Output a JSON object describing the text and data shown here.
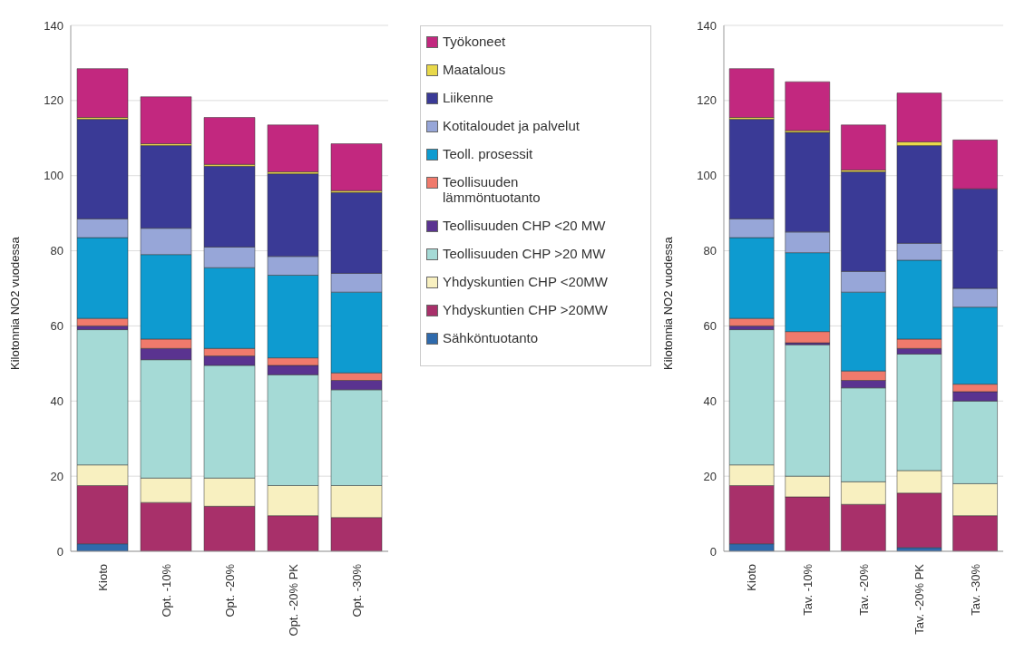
{
  "chart_data": [
    {
      "type": "bar",
      "stacked": true,
      "ylabel": "Kilotonnia NO2 vuodessa",
      "categories": [
        "Kioto",
        "Opt. -10%",
        "Opt. -20%",
        "Opt. -20% PK",
        "Opt. -30%"
      ],
      "ylim": [
        0,
        140
      ],
      "yticks": [
        0,
        20,
        40,
        60,
        80,
        100,
        120,
        140
      ],
      "grid": "y",
      "legend": "right",
      "series": [
        {
          "name": "Sähköntuotanto",
          "color": "#2f6aac",
          "values": [
            2,
            null,
            null,
            null,
            null
          ]
        },
        {
          "name": "Yhdyskuntien CHP >20MW",
          "color": "#a8306a",
          "values": [
            15.5,
            13,
            12,
            9.5,
            9
          ]
        },
        {
          "name": "Yhdyskuntien CHP <20MW",
          "color": "#f8f0c0",
          "values": [
            5.5,
            6.5,
            7.5,
            8,
            8.5
          ]
        },
        {
          "name": "Teollisuuden CHP >20 MW",
          "color": "#a5dad6",
          "values": [
            36,
            31.5,
            30,
            29.5,
            25.5
          ]
        },
        {
          "name": "Teollisuuden CHP <20 MW",
          "color": "#5a3390",
          "values": [
            1,
            3,
            2.5,
            2.5,
            2.5
          ]
        },
        {
          "name": "Teollisuuden lämmöntuotanto",
          "color": "#f07a6c",
          "values": [
            2,
            2.5,
            2,
            2,
            2
          ]
        },
        {
          "name": "Teoll. prosessit",
          "color": "#0e9bd0",
          "values": [
            21.5,
            22.5,
            21.5,
            22,
            21.5
          ]
        },
        {
          "name": "Kotitaloudet ja palvelut",
          "color": "#97a6d8",
          "values": [
            5,
            7,
            5.5,
            5,
            5
          ]
        },
        {
          "name": "Liikenne",
          "color": "#3a3a96",
          "values": [
            26.5,
            22,
            21.5,
            22,
            21.5
          ]
        },
        {
          "name": "Maatalous",
          "color": "#e8d84a",
          "values": [
            0.5,
            0.5,
            0.5,
            0.5,
            0.5
          ]
        },
        {
          "name": "Työkoneet",
          "color": "#c2287f",
          "values": [
            13,
            12.5,
            12.5,
            12.5,
            12.5
          ]
        }
      ]
    },
    {
      "type": "bar",
      "stacked": true,
      "ylabel": "Kilotonnia NO2 vuodessa",
      "categories": [
        "Kioto",
        "Tav. -10%",
        "Tav. -20%",
        "Tav. -20% PK",
        "Tav. -30%"
      ],
      "ylim": [
        0,
        140
      ],
      "yticks": [
        0,
        20,
        40,
        60,
        80,
        100,
        120,
        140
      ],
      "grid": "y",
      "series": [
        {
          "color": "#2f6aac",
          "values": [
            2,
            null,
            null,
            1,
            null
          ]
        },
        {
          "color": "#a8306a",
          "values": [
            15.5,
            14.5,
            12.5,
            14.5,
            9.5
          ]
        },
        {
          "color": "#f8f0c0",
          "values": [
            5.5,
            5.5,
            6,
            6,
            8.5
          ]
        },
        {
          "color": "#a5dad6",
          "values": [
            36,
            35,
            25,
            31,
            22
          ]
        },
        {
          "color": "#5a3390",
          "values": [
            1,
            0.5,
            2,
            1.5,
            2.5
          ]
        },
        {
          "color": "#f07a6c",
          "values": [
            2,
            3,
            2.5,
            2.5,
            2
          ]
        },
        {
          "color": "#0e9bd0",
          "values": [
            21.5,
            21,
            21,
            21,
            20.5
          ]
        },
        {
          "color": "#97a6d8",
          "values": [
            5,
            5.5,
            5.5,
            4.5,
            5
          ]
        },
        {
          "color": "#3a3a96",
          "values": [
            26.5,
            26.5,
            26.5,
            26,
            26.5
          ]
        },
        {
          "color": "#e8d84a",
          "values": [
            0.5,
            0.5,
            0.5,
            1,
            0
          ]
        },
        {
          "color": "#c2287f",
          "values": [
            13,
            13,
            12,
            13,
            13
          ]
        }
      ]
    }
  ]
}
